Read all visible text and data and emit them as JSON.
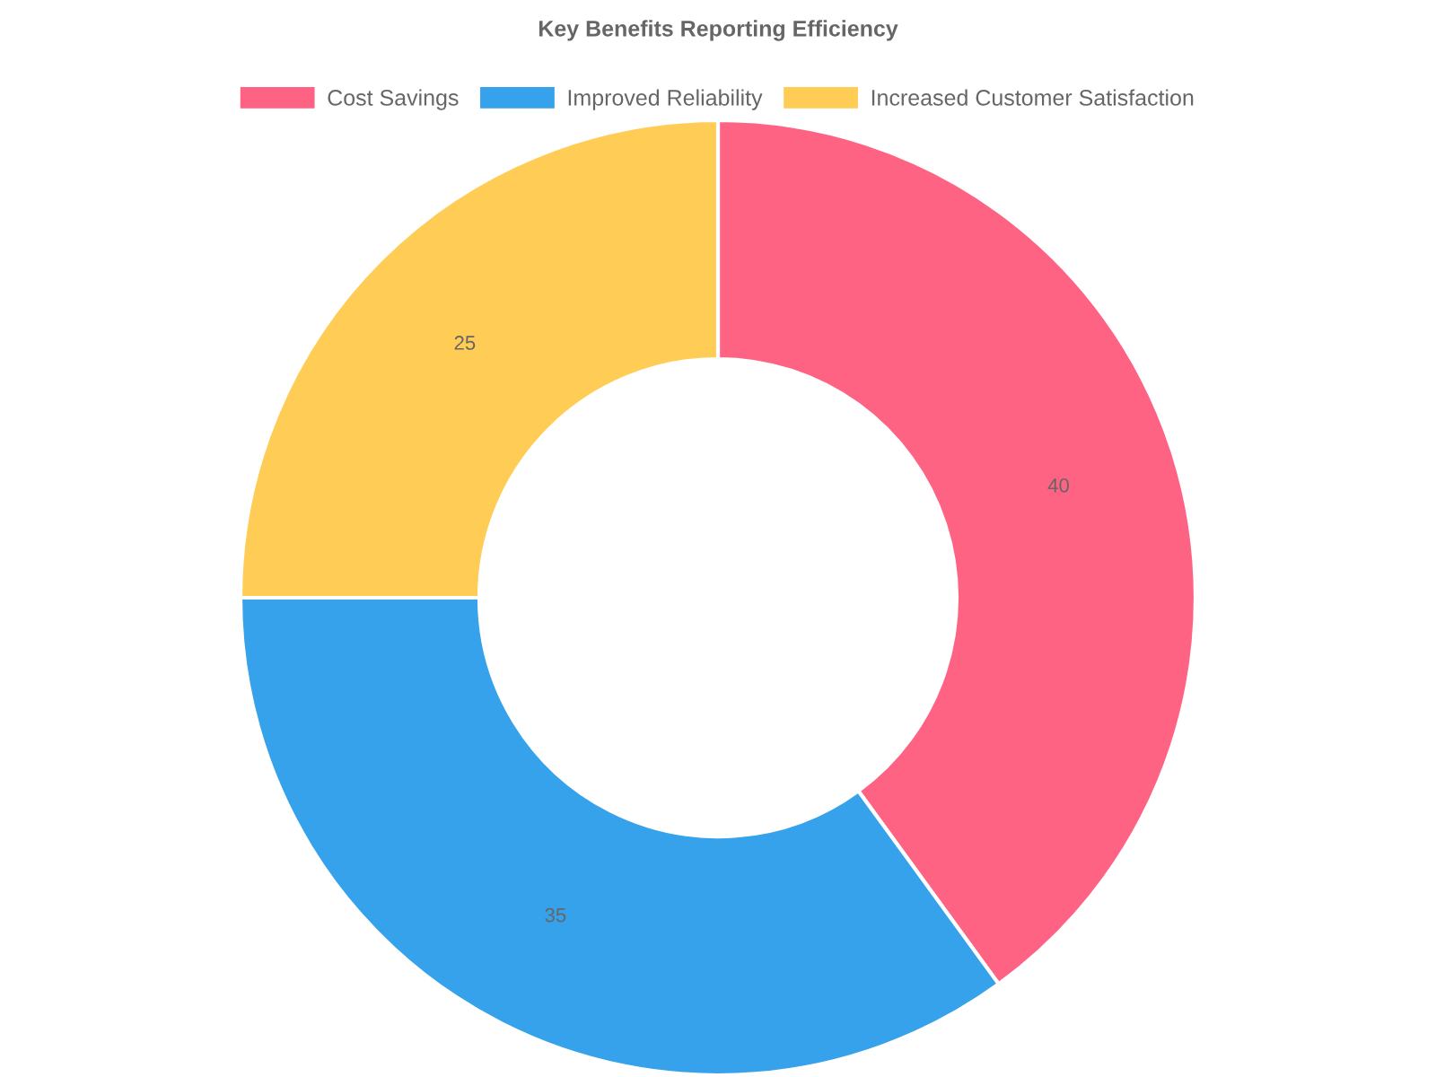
{
  "chart_data": {
    "type": "donut",
    "title": "Key Benefits Reporting Efficiency",
    "categories": [
      "Cost Savings",
      "Improved Reliability",
      "Increased Customer Satisfaction"
    ],
    "values": [
      40,
      35,
      25
    ],
    "colors": [
      "#ff6384",
      "#36a2eb",
      "#ffcd56"
    ],
    "data_labels": true,
    "legend": "top"
  }
}
